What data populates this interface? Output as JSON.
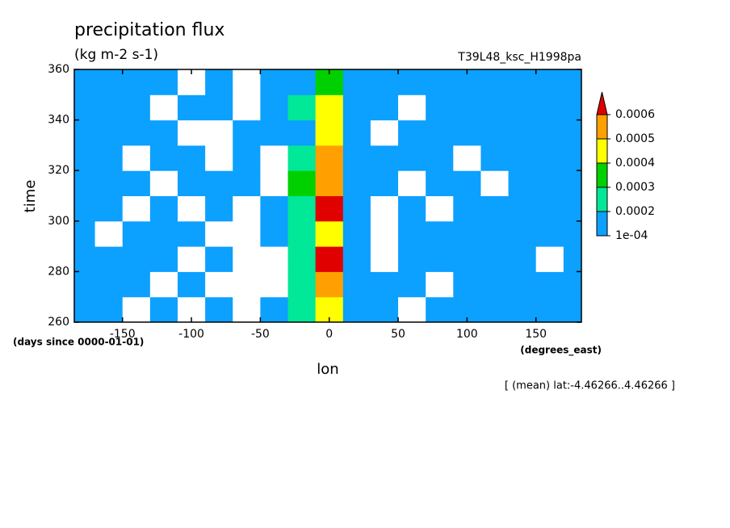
{
  "chart_data": {
    "type": "heatmap",
    "title": "precipitation flux",
    "subtitle": "(kg m-2 s-1)",
    "annotation": "T39L48_ksc_H1998pa",
    "x_label": "lon",
    "y_label": "time",
    "y_units": "(days since 0000-01-01)",
    "x_units": "(degrees_east)",
    "footnote": "[ (mean) lat:-4.46266..4.46266 ]",
    "xlim": [
      -185,
      183
    ],
    "ylim": [
      260,
      360
    ],
    "xticks": [
      -150,
      -100,
      -50,
      0,
      50,
      100,
      150
    ],
    "yticks": [
      260,
      280,
      300,
      320,
      340,
      360
    ],
    "x": [
      -180,
      -160,
      -140,
      -120,
      -100,
      -80,
      -60,
      -40,
      -20,
      0,
      20,
      40,
      60,
      80,
      100,
      120,
      140,
      160,
      180
    ],
    "y": [
      265,
      275,
      285,
      295,
      305,
      315,
      325,
      335,
      345,
      355
    ],
    "z": [
      [
        0.00012,
        0.00015,
        9e-05,
        0.00011,
        8e-05,
        0.00013,
        6e-05,
        0.0001,
        0.00021,
        0.00046,
        0.00018,
        0.00012,
        9e-05,
        0.00014,
        0.00011,
        0.00013,
        0.00016,
        0.00012,
        0.0001
      ],
      [
        0.00014,
        0.00011,
        0.00016,
        7e-05,
        0.00012,
        5e-05,
        4e-05,
        9e-05,
        0.00024,
        0.00052,
        0.00016,
        0.00011,
        0.00013,
        8e-05,
        0.00015,
        0.00012,
        0.0001,
        0.00014,
        0.00013
      ],
      [
        0.0001,
        0.00013,
        0.00012,
        0.00015,
        9e-05,
        0.00011,
        6e-05,
        8e-05,
        0.00022,
        0.00061,
        0.00019,
        9e-05,
        0.00012,
        0.00014,
        0.0001,
        0.00016,
        0.00013,
        9e-05,
        0.00012
      ],
      [
        0.00016,
        9e-05,
        0.00014,
        0.0001,
        0.00013,
        7e-05,
        5e-05,
        0.00011,
        0.00026,
        0.00048,
        0.00014,
        6e-05,
        0.0001,
        0.00013,
        0.00015,
        0.00011,
        0.00014,
        0.00016,
        0.00011
      ],
      [
        0.00011,
        0.00014,
        8e-05,
        0.00012,
        6e-05,
        0.00012,
        9e-05,
        0.00013,
        0.00027,
        0.00063,
        0.00012,
        5e-05,
        0.00011,
        9e-05,
        0.00013,
        0.00015,
        0.00012,
        0.0001,
        0.00015
      ],
      [
        0.00013,
        0.0001,
        0.00012,
        7e-05,
        0.00011,
        0.00014,
        0.0001,
        9e-05,
        0.00031,
        0.00058,
        0.00017,
        0.00012,
        8e-05,
        0.00014,
        0.00012,
        9e-05,
        0.00015,
        0.00013,
        0.00011
      ],
      [
        0.00015,
        0.00012,
        6e-05,
        0.0001,
        0.00013,
        9e-05,
        0.00012,
        7e-05,
        0.00023,
        0.00054,
        0.00015,
        0.0001,
        0.00013,
        0.00011,
        9e-05,
        0.00014,
        0.00011,
        0.00012,
        0.00014
      ],
      [
        0.00012,
        0.00017,
        0.00011,
        0.00014,
        9e-05,
        7e-05,
        0.00011,
        0.0001,
        0.00019,
        0.00044,
        0.00013,
        9e-05,
        0.00012,
        0.00015,
        0.0001,
        0.00012,
        0.00013,
        0.00011,
        0.00012
      ],
      [
        0.00014,
        0.00011,
        0.00013,
        9e-05,
        0.00012,
        0.0001,
        6e-05,
        0.00011,
        0.0002,
        0.00041,
        0.00016,
        0.00011,
        9e-05,
        0.00012,
        0.00014,
        0.00011,
        0.0001,
        0.00013,
        0.00015
      ],
      [
        0.0001,
        0.00013,
        0.00015,
        0.00012,
        8e-05,
        0.00011,
        9e-05,
        0.00012,
        0.00018,
        0.00039,
        0.00014,
        0.00012,
        0.0001,
        0.00011,
        0.00013,
        0.0001,
        0.00012,
        0.00014,
        0.00011
      ]
    ],
    "levels": [
      {
        "value": 0.0001,
        "label": "1e-04"
      },
      0.0002,
      0.0003,
      0.0004,
      0.0005,
      0.0006
    ],
    "colors": [
      "#0ca0ff",
      "#00e898",
      "#00d000",
      "#ffff00",
      "#ffa000",
      "#e00000"
    ]
  }
}
